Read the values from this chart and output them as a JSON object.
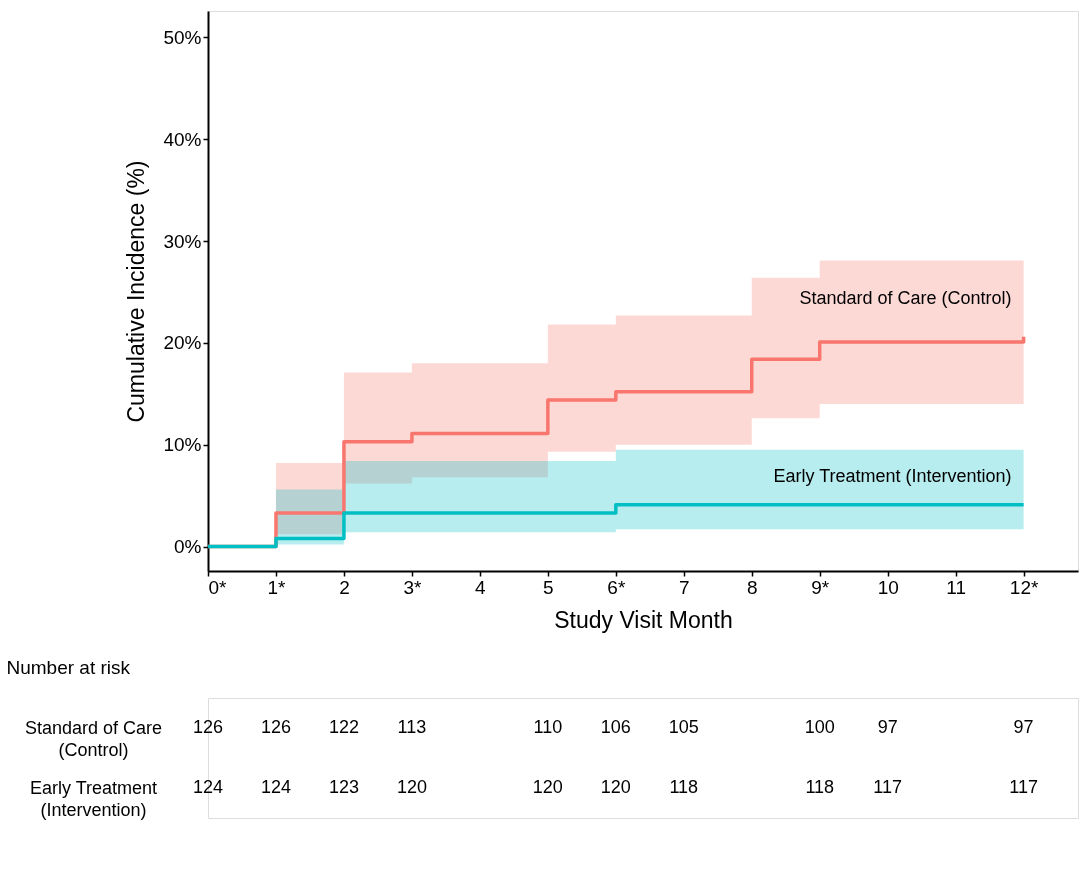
{
  "chart_data": [
    {
      "type": "step",
      "xlabel": "Study Visit Month",
      "ylabel": "Cumulative Incidence (%)",
      "xlim": [
        0,
        12.8
      ],
      "ylim": [
        -2.4,
        52.6
      ],
      "xticks": [
        {
          "value": 0,
          "label": "0*"
        },
        {
          "value": 1,
          "label": "1*"
        },
        2,
        {
          "value": 3,
          "label": "3*"
        },
        4,
        5,
        {
          "value": 6,
          "label": "6*"
        },
        7,
        8,
        {
          "value": 9,
          "label": "9*"
        },
        10,
        11,
        {
          "value": 12,
          "label": "12*"
        }
      ],
      "yticks": [
        {
          "value": 0,
          "label": "0%"
        },
        {
          "value": 10,
          "label": "10%"
        },
        {
          "value": 20,
          "label": "20%"
        },
        {
          "value": 30,
          "label": "30%"
        },
        {
          "value": 40,
          "label": "40%"
        },
        {
          "value": 50,
          "label": "50%"
        }
      ],
      "grid": false,
      "series": [
        {
          "name": "Standard of Care (Control)",
          "color": "#f8766d",
          "x": [
            0,
            1,
            2,
            3,
            5,
            6,
            8,
            9,
            12,
            12
          ],
          "values": [
            0,
            3.3,
            10.3,
            11.1,
            14.4,
            15.2,
            18.4,
            20.1,
            20.1,
            20.6
          ],
          "lower": [
            null,
            1.2,
            6.2,
            6.8,
            9.3,
            10.0,
            12.6,
            14.0,
            14.0,
            14.0
          ],
          "upper": [
            null,
            8.2,
            17.1,
            18.0,
            21.8,
            22.7,
            26.4,
            28.1,
            28.1,
            28.1
          ]
        },
        {
          "name": "Early Treatment (Intervention)",
          "color": "#00bfc4",
          "x": [
            0,
            1,
            2,
            6,
            12
          ],
          "values": [
            0,
            0.8,
            3.3,
            4.1,
            4.1
          ],
          "lower": [
            null,
            0.2,
            1.4,
            1.7,
            1.7
          ],
          "upper": [
            null,
            5.6,
            8.4,
            9.5,
            9.5
          ]
        }
      ]
    },
    {
      "type": "heatmap",
      "title": "Number at risk",
      "xlim": [
        0,
        12.8
      ],
      "tick_labels": "y",
      "data_labels": true,
      "x": [
        0,
        1,
        2,
        3,
        5,
        6,
        7,
        9,
        10,
        12
      ],
      "y_categories": [
        "Standard of Care\n(Control)",
        "Early Treatment\n(Intervention)"
      ],
      "cells": [
        [
          126,
          126,
          122,
          113,
          110,
          106,
          105,
          100,
          97,
          97
        ],
        [
          124,
          124,
          123,
          120,
          120,
          120,
          118,
          118,
          117,
          117
        ]
      ]
    }
  ]
}
